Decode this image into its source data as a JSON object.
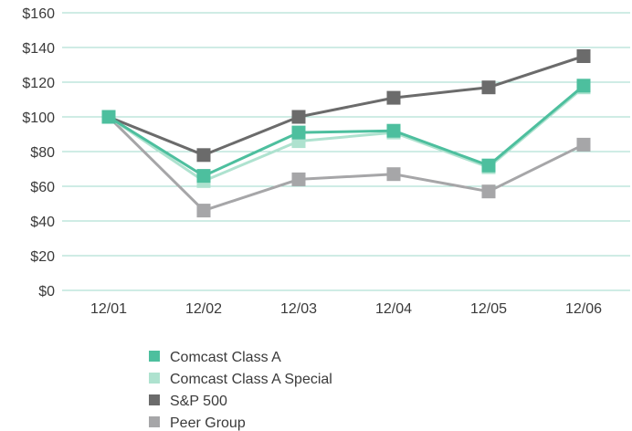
{
  "chart_data": {
    "type": "line",
    "title": "",
    "xlabel": "",
    "ylabel": "",
    "categories": [
      "12/01",
      "12/02",
      "12/03",
      "12/04",
      "12/05",
      "12/06"
    ],
    "ylim": [
      0,
      160
    ],
    "yticks": [
      0,
      20,
      40,
      60,
      80,
      100,
      120,
      140,
      160
    ],
    "ytick_labels": [
      "$0",
      "$20",
      "$40",
      "$60",
      "$80",
      "$100",
      "$120",
      "$140",
      "$160"
    ],
    "grid": true,
    "gridline_color": "#9fd9cb",
    "legend_position": "bottom",
    "series": [
      {
        "name": "Comcast Class A",
        "values": [
          100,
          66,
          91,
          92,
          72,
          118
        ],
        "color": "#4dbf9e"
      },
      {
        "name": "Comcast Class A Special",
        "values": [
          100,
          63,
          86,
          91,
          71,
          117
        ],
        "color": "#aee2cf"
      },
      {
        "name": "S&P 500",
        "values": [
          100,
          78,
          100,
          111,
          117,
          135
        ],
        "color": "#6b6b6b"
      },
      {
        "name": "Peer Group",
        "values": [
          100,
          46,
          64,
          67,
          57,
          84
        ],
        "color": "#a6a6a8"
      }
    ],
    "draw_order": [
      3,
      2,
      1,
      0
    ]
  }
}
